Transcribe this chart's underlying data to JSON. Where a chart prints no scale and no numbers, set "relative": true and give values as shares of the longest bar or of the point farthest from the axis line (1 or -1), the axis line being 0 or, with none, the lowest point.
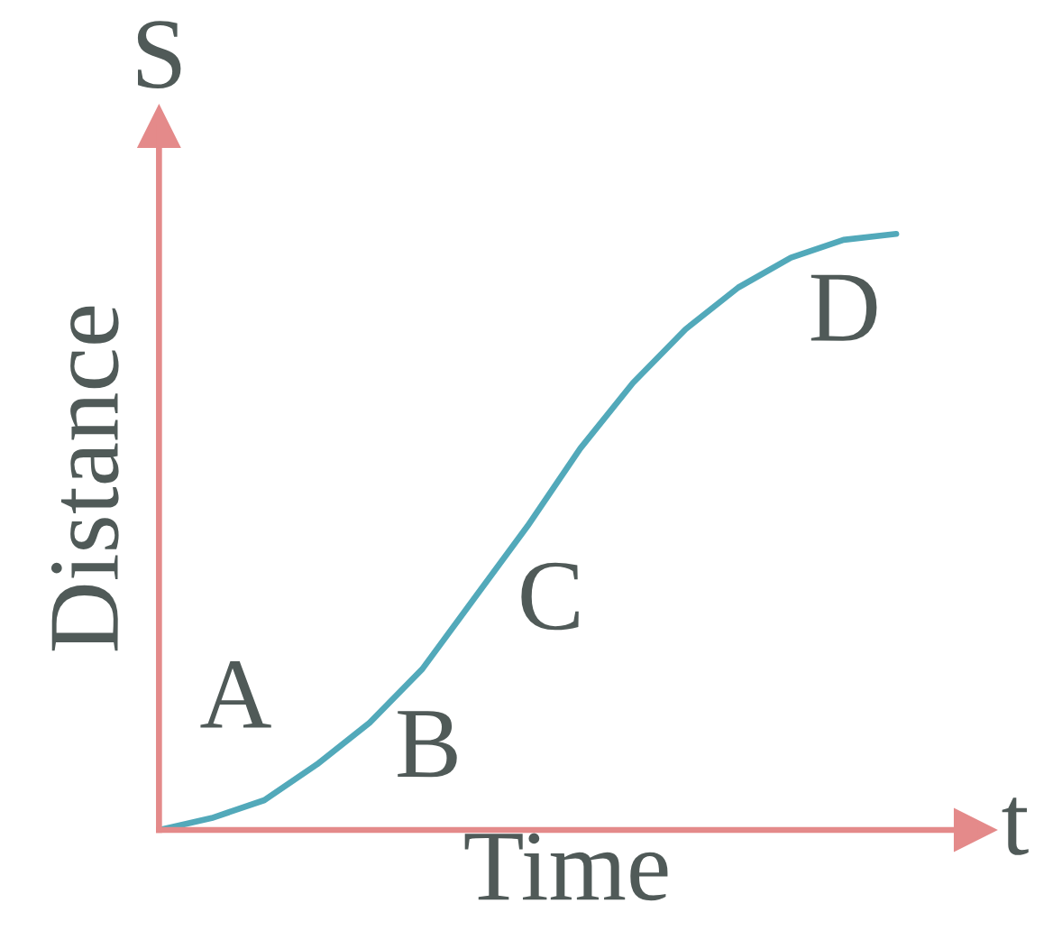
{
  "chart_data": {
    "type": "line",
    "xlabel": "Time",
    "ylabel": "Distance",
    "relative": true,
    "tick_labels": false,
    "categories": [
      null,
      null,
      null,
      null,
      null,
      null,
      null,
      null,
      null,
      null,
      null,
      null,
      null,
      null,
      null
    ],
    "series": [
      {
        "color": "#52a9ba",
        "values": [
          0,
          0.02,
          0.05,
          0.11,
          0.18,
          0.27,
          0.39,
          0.51,
          0.64,
          0.75,
          0.84,
          0.91,
          0.96,
          0.99,
          1
        ]
      }
    ],
    "annotations": [
      "S",
      "t",
      "A",
      "B",
      "C",
      "D"
    ]
  }
}
